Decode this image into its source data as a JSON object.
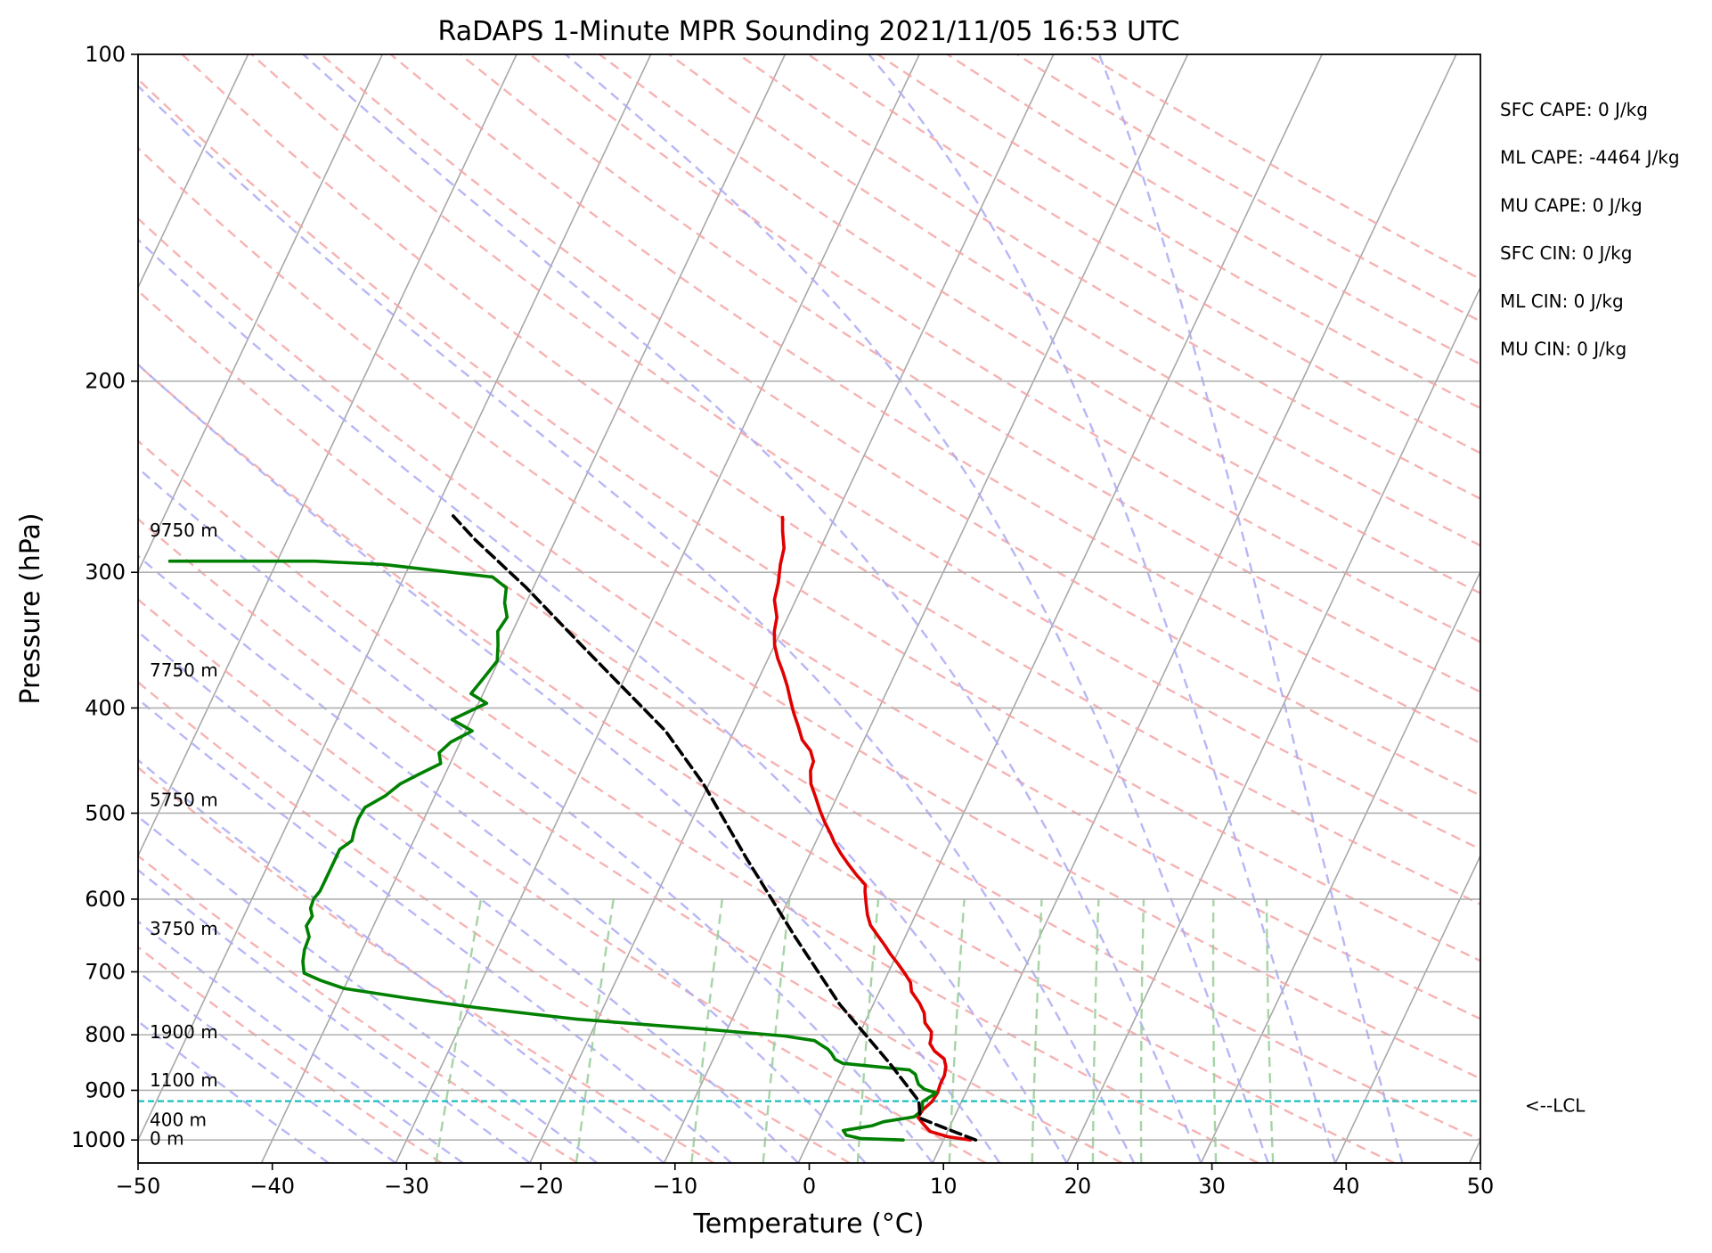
{
  "chart_data": {
    "type": "line",
    "title": "RaDAPS 1-Minute MPR Sounding 2021/11/05 16:53 UTC",
    "xlabel": "Temperature (°C)",
    "ylabel": "Pressure (hPa)",
    "xlim": [
      -50,
      50
    ],
    "ylim": [
      1050,
      100
    ],
    "y_scale": "log",
    "skew": "skew-T log-P",
    "x_ticks": [
      "−50",
      "−40",
      "−30",
      "−20",
      "−10",
      "0",
      "10",
      "20",
      "30",
      "40",
      "50"
    ],
    "y_ticks": [
      "100",
      "200",
      "300",
      "400",
      "500",
      "600",
      "700",
      "800",
      "900",
      "1000"
    ],
    "grid": true,
    "background_lines": [
      "isotherms",
      "dry adiabats",
      "moist adiabats",
      "mixing ratio lines"
    ],
    "colors": {
      "temperature": "#e00000",
      "dewpoint": "#008000",
      "parcel": "#000000",
      "lcl": "#1bbfbf",
      "isotherm": "#a8a8a8",
      "dry_adiabat": "#f4a6a6",
      "moist_adiabat": "#aaaaf4",
      "mixing_ratio": "#9ccf9c",
      "isobar": "#b0b0b0"
    },
    "series": [
      {
        "style": "temperature",
        "points": [
          [
            12.0,
            1000
          ],
          [
            10.2,
            993
          ],
          [
            8.7,
            982
          ],
          [
            8.0,
            968
          ],
          [
            7.3,
            953
          ],
          [
            7.4,
            938
          ],
          [
            7.8,
            922
          ],
          [
            7.9,
            905
          ],
          [
            7.8,
            888
          ],
          [
            7.8,
            872
          ],
          [
            7.6,
            856
          ],
          [
            7.2,
            842
          ],
          [
            6.2,
            828
          ],
          [
            5.6,
            815
          ],
          [
            5.5,
            806
          ],
          [
            5.3,
            795
          ],
          [
            4.5,
            780
          ],
          [
            4.1,
            764
          ],
          [
            3.4,
            748
          ],
          [
            2.4,
            730
          ],
          [
            2.0,
            716
          ],
          [
            1.3,
            703
          ],
          [
            0.4,
            688
          ],
          [
            -0.5,
            674
          ],
          [
            -1.2,
            662
          ],
          [
            -2.1,
            648
          ],
          [
            -3.0,
            634
          ],
          [
            -3.6,
            620
          ],
          [
            -4.1,
            605
          ],
          [
            -4.6,
            590
          ],
          [
            -4.8,
            582
          ],
          [
            -5.8,
            570
          ],
          [
            -6.8,
            557
          ],
          [
            -7.7,
            545
          ],
          [
            -8.6,
            532
          ],
          [
            -9.2,
            522
          ],
          [
            -10.0,
            510
          ],
          [
            -10.8,
            497
          ],
          [
            -11.6,
            483
          ],
          [
            -12.4,
            470
          ],
          [
            -12.9,
            457
          ],
          [
            -13.0,
            448
          ],
          [
            -13.6,
            438
          ],
          [
            -14.6,
            428
          ],
          [
            -15.3,
            417
          ],
          [
            -16.2,
            404
          ],
          [
            -16.9,
            393
          ],
          [
            -17.6,
            382
          ],
          [
            -18.4,
            371
          ],
          [
            -19.3,
            360
          ],
          [
            -20.0,
            350
          ],
          [
            -20.5,
            340
          ],
          [
            -20.8,
            330
          ],
          [
            -21.6,
            318
          ],
          [
            -21.9,
            307
          ],
          [
            -22.4,
            295
          ],
          [
            -22.7,
            285
          ],
          [
            -23.4,
            275
          ],
          [
            -23.9,
            267
          ]
        ]
      },
      {
        "style": "dewpoint",
        "points": [
          [
            7.0,
            1000
          ],
          [
            3.8,
            997
          ],
          [
            2.6,
            990
          ],
          [
            2.2,
            980
          ],
          [
            3.2,
            975
          ],
          [
            4.2,
            970
          ],
          [
            4.9,
            962
          ],
          [
            6.0,
            957
          ],
          [
            7.0,
            952
          ],
          [
            7.2,
            945
          ],
          [
            7.3,
            935
          ],
          [
            7.1,
            922
          ],
          [
            7.8,
            905
          ],
          [
            6.8,
            898
          ],
          [
            6.2,
            889
          ],
          [
            5.9,
            880
          ],
          [
            5.6,
            870
          ],
          [
            5.0,
            862
          ],
          [
            -0.2,
            850
          ],
          [
            -0.9,
            843
          ],
          [
            -1.4,
            832
          ],
          [
            -1.8,
            825
          ],
          [
            -2.5,
            817
          ],
          [
            -3.1,
            810
          ],
          [
            -5.5,
            802
          ],
          [
            -12.0,
            790
          ],
          [
            -21.5,
            774
          ],
          [
            -29.5,
            755
          ],
          [
            -35.0,
            740
          ],
          [
            -40.0,
            725
          ],
          [
            -42.0,
            713
          ],
          [
            -43.5,
            702
          ],
          [
            -44.0,
            685
          ],
          [
            -44.3,
            668
          ],
          [
            -44.4,
            650
          ],
          [
            -45.0,
            635
          ],
          [
            -44.9,
            622
          ],
          [
            -45.3,
            612
          ],
          [
            -45.4,
            600
          ],
          [
            -45.2,
            590
          ],
          [
            -45.2,
            578
          ],
          [
            -45.2,
            565
          ],
          [
            -45.2,
            552
          ],
          [
            -45.2,
            540
          ],
          [
            -44.6,
            530
          ],
          [
            -44.8,
            518
          ],
          [
            -44.9,
            506
          ],
          [
            -44.8,
            494
          ],
          [
            -43.7,
            482
          ],
          [
            -43.0,
            470
          ],
          [
            -41.9,
            460
          ],
          [
            -40.7,
            450
          ],
          [
            -41.2,
            440
          ],
          [
            -40.7,
            430
          ],
          [
            -39.5,
            420
          ],
          [
            -41.4,
            410
          ],
          [
            -39.4,
            396
          ],
          [
            -40.9,
            388
          ],
          [
            -40.5,
            375
          ],
          [
            -40.1,
            362
          ],
          [
            -40.6,
            350
          ],
          [
            -41.1,
            340
          ],
          [
            -40.9,
            330
          ],
          [
            -41.6,
            320
          ],
          [
            -42.0,
            310
          ],
          [
            -43.4,
            303
          ],
          [
            -52.0,
            295
          ],
          [
            -57.2,
            293
          ],
          [
            -68.0,
            293
          ]
        ]
      },
      {
        "style": "parcel",
        "points": [
          [
            12.4,
            1000
          ],
          [
            10.0,
            978
          ],
          [
            7.5,
            955
          ],
          [
            6.8,
            921
          ],
          [
            3.3,
            850
          ],
          [
            -2.5,
            750
          ],
          [
            -8.2,
            650
          ],
          [
            -14.6,
            550
          ],
          [
            -20.4,
            470
          ],
          [
            -25.1,
            420
          ],
          [
            -34.4,
            350
          ],
          [
            -40.5,
            310
          ],
          [
            -46.0,
            280
          ],
          [
            -48.7,
            265
          ]
        ]
      }
    ],
    "lcl_pressure": 921,
    "lcl_label": "<--LCL",
    "height_labels": [
      {
        "text": "9750 m",
        "p": 275
      },
      {
        "text": "7750 m",
        "p": 370
      },
      {
        "text": "5750 m",
        "p": 487
      },
      {
        "text": "3750 m",
        "p": 640
      },
      {
        "text": "1900 m",
        "p": 797
      },
      {
        "text": "1100 m",
        "p": 882
      },
      {
        "text": "400 m",
        "p": 960
      },
      {
        "text": "0 m",
        "p": 999
      }
    ],
    "parameters": [
      "SFC CAPE: 0 J/kg",
      "ML CAPE: -4464 J/kg",
      "MU CAPE: 0 J/kg",
      "SFC CIN: 0 J/kg",
      "ML CIN: 0 J/kg",
      "MU CIN: 0 J/kg"
    ]
  }
}
